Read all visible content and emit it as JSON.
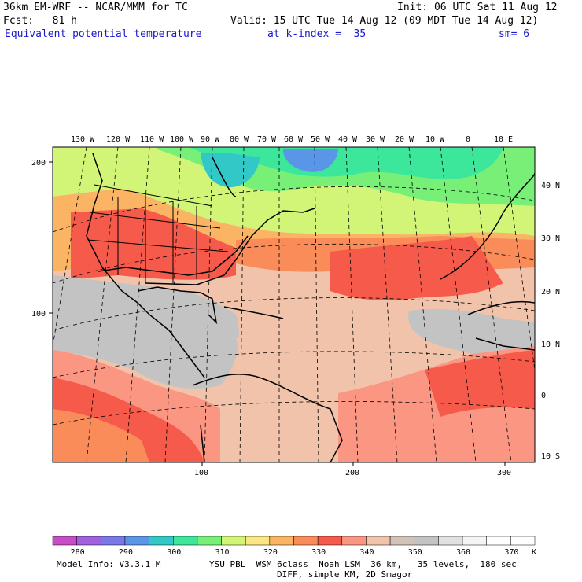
{
  "header": {
    "title_left": "36km EM-WRF -- NCAR/MMM for TC",
    "init": "Init: 06 UTC Sat 11 Aug 12",
    "fcst": "Fcst:   81 h",
    "valid": "Valid: 15 UTC Tue 14 Aug 12 (09 MDT Tue 14 Aug 12)",
    "field": "Equivalent potential temperature",
    "level": "at k-index =  35",
    "smooth": "sm= 6"
  },
  "map": {
    "lon_labels": [
      "130 W",
      "120 W",
      "110 W",
      "100 W",
      "90 W",
      "80 W",
      "70 W",
      "60 W",
      "50 W",
      "40 W",
      "30 W",
      "20 W",
      "10 W",
      "0",
      "10 E"
    ],
    "lat_labels": [
      "40 N",
      "30 N",
      "20 N",
      "10 N",
      "0",
      "10 S"
    ],
    "x_grid_labels": [
      "100",
      "200",
      "300"
    ],
    "y_grid_labels": [
      "200",
      "100"
    ]
  },
  "colorbar": {
    "tick_labels": [
      "280",
      "290",
      "300",
      "310",
      "320",
      "330",
      "340",
      "350",
      "360",
      "370"
    ],
    "unit": "K",
    "colors": [
      "#c84cc8",
      "#a060e0",
      "#7a78e8",
      "#5a96e8",
      "#32c8c8",
      "#3ce69a",
      "#78f078",
      "#d2f578",
      "#fae682",
      "#fab464",
      "#fa8c5a",
      "#f55a4b",
      "#fa9682",
      "#f0c3aa",
      "#d2c3b9",
      "#c3c3c3",
      "#e1e1e1",
      "#f5f5f5",
      "#ffffff",
      "#ffffff"
    ]
  },
  "footer": {
    "model_info": "Model Info: V3.3.1 M",
    "physics_line1": "YSU PBL  WSM 6class  Noah LSM  36 km,   35 levels,  180 sec",
    "physics_line2": "DIFF, simple KM, 2D Smagor"
  }
}
